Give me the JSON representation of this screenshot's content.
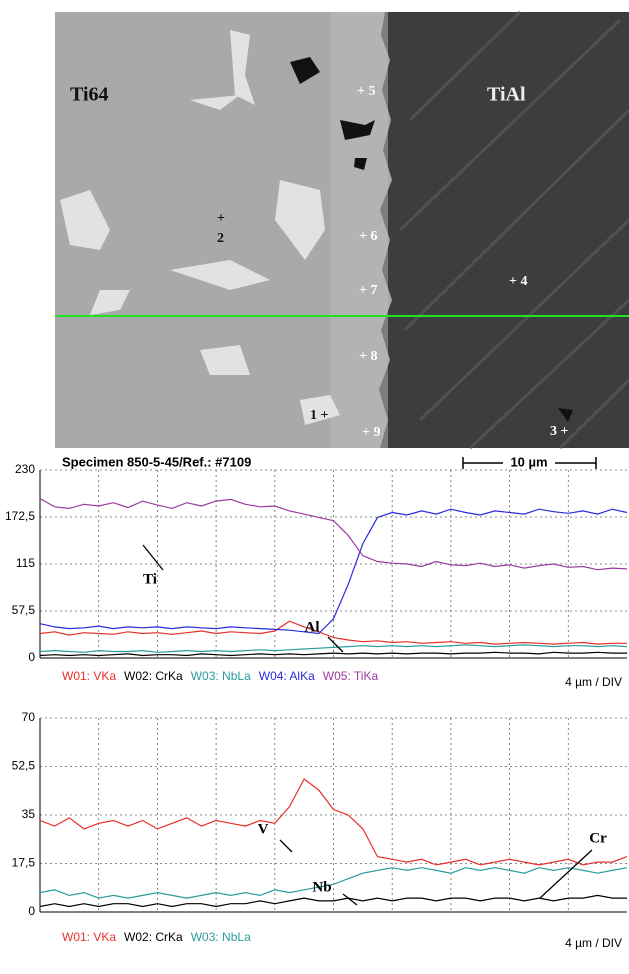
{
  "image": {
    "caption": "Specimen 850-5-45/Ref.: #7109",
    "scale_bar": "10 µm",
    "labels": [
      "Ti64",
      "TiAl",
      "+ 5",
      "+ 6",
      "+ 7",
      "+ 8",
      "+ 9",
      "+",
      "2",
      "1 +",
      "+ 4",
      "3 +"
    ]
  },
  "chart_data": [
    {
      "type": "line",
      "x_label": "4 µm / DIV",
      "ylim": [
        0,
        230
      ],
      "yticks": [
        0,
        {
          "value": 57.5,
          "label": "57,5"
        },
        115,
        {
          "value": 172.5,
          "label": "172,5"
        },
        230
      ],
      "grid": true,
      "annotations": [
        "Ti",
        "Al"
      ],
      "series": [
        {
          "name": "W01: VKa",
          "color": "#e8302a",
          "values": [
            30,
            32,
            28,
            31,
            30,
            29,
            32,
            30,
            31,
            29,
            31,
            33,
            30,
            32,
            31,
            30,
            33,
            45,
            38,
            32,
            25,
            22,
            20,
            21,
            19,
            20,
            18,
            19,
            20,
            18,
            19,
            17,
            18,
            19,
            18,
            17,
            18,
            19,
            17,
            18,
            18
          ]
        },
        {
          "name": "W02: CrKa",
          "color": "#000000",
          "values": [
            3,
            4,
            3,
            4,
            3,
            4,
            5,
            3,
            4,
            4,
            3,
            5,
            4,
            3,
            4,
            5,
            4,
            5,
            4,
            5,
            6,
            5,
            6,
            5,
            6,
            5,
            6,
            6,
            5,
            6,
            6,
            7,
            6,
            6,
            5,
            7,
            6,
            6,
            7,
            6,
            6
          ]
        },
        {
          "name": "W03: NbLa",
          "color": "#2a9d9d",
          "values": [
            8,
            9,
            8,
            7,
            9,
            8,
            8,
            9,
            7,
            8,
            9,
            8,
            9,
            8,
            9,
            10,
            9,
            10,
            11,
            12,
            13,
            14,
            15,
            14,
            15,
            14,
            15,
            14,
            15,
            16,
            15,
            14,
            15,
            16,
            15,
            14,
            15,
            15,
            14,
            15,
            14
          ]
        },
        {
          "name": "W04: AlKa",
          "color": "#2a2ae0",
          "values": [
            42,
            38,
            36,
            37,
            39,
            36,
            38,
            37,
            38,
            36,
            38,
            37,
            36,
            38,
            37,
            36,
            35,
            34,
            32,
            30,
            48,
            90,
            140,
            172,
            178,
            175,
            180,
            176,
            182,
            178,
            175,
            180,
            178,
            176,
            182,
            179,
            177,
            180,
            176,
            182,
            178
          ]
        },
        {
          "name": "W05: TiKa",
          "color": "#9a3aa0",
          "values": [
            195,
            185,
            183,
            188,
            186,
            190,
            184,
            192,
            187,
            183,
            190,
            186,
            192,
            194,
            188,
            185,
            186,
            180,
            176,
            172,
            168,
            150,
            125,
            118,
            116,
            115,
            112,
            118,
            114,
            113,
            116,
            112,
            114,
            110,
            113,
            115,
            111,
            112,
            108,
            110,
            109
          ]
        }
      ]
    },
    {
      "type": "line",
      "x_label": "4 µm / DIV",
      "ylim": [
        0,
        70
      ],
      "yticks": [
        0,
        {
          "value": 17.5,
          "label": "17,5"
        },
        35,
        {
          "value": 52.5,
          "label": "52,5"
        },
        70
      ],
      "grid": true,
      "annotations": [
        "V",
        "Nb",
        "Cr"
      ],
      "series": [
        {
          "name": "W01: VKa",
          "color": "#e8302a",
          "values": [
            33,
            31,
            34,
            30,
            32,
            33,
            31,
            33,
            30,
            32,
            34,
            31,
            33,
            32,
            31,
            33,
            32,
            38,
            48,
            44,
            37,
            35,
            30,
            20,
            19,
            18,
            19,
            17,
            18,
            19,
            17,
            18,
            19,
            18,
            17,
            18,
            19,
            17,
            18,
            18,
            20
          ]
        },
        {
          "name": "W02: CrKa",
          "color": "#000000",
          "values": [
            2,
            3,
            2,
            3,
            2,
            3,
            3,
            2,
            3,
            2,
            3,
            3,
            2,
            3,
            3,
            4,
            3,
            4,
            5,
            4,
            4,
            5,
            4,
            5,
            4,
            5,
            5,
            4,
            5,
            5,
            4,
            5,
            5,
            4,
            5,
            4,
            5,
            5,
            6,
            5,
            5
          ]
        },
        {
          "name": "W03: NbLa",
          "color": "#2a9d9d",
          "values": [
            7,
            8,
            6,
            7,
            5,
            6,
            5,
            6,
            7,
            6,
            5,
            6,
            7,
            6,
            7,
            6,
            8,
            7,
            8,
            9,
            10,
            12,
            14,
            15,
            16,
            15,
            16,
            15,
            14,
            16,
            15,
            16,
            15,
            14,
            16,
            15,
            16,
            15,
            14,
            15,
            16
          ]
        }
      ]
    }
  ]
}
